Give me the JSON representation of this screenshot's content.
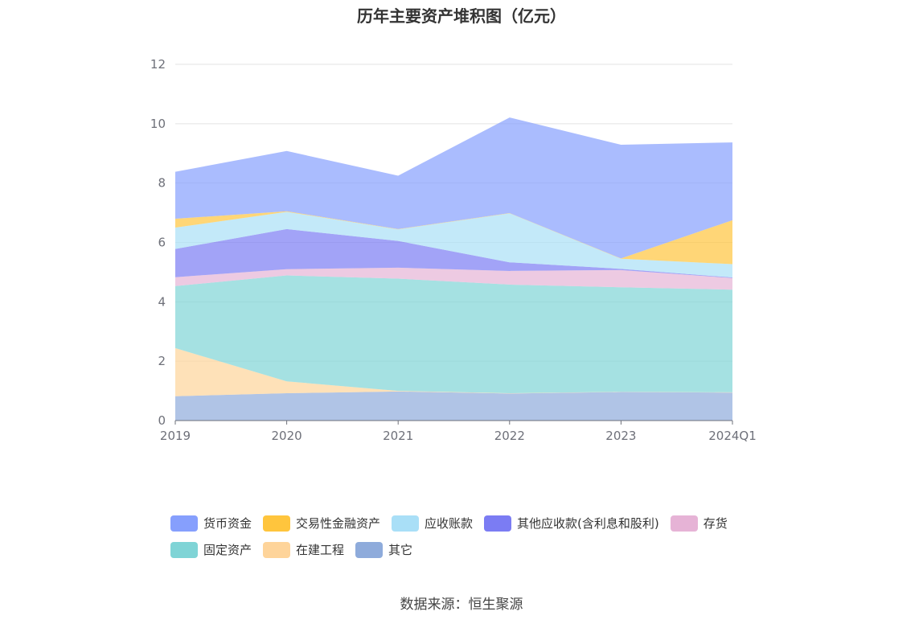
{
  "chart_data": {
    "type": "area",
    "stacked": true,
    "title": "历年主要资产堆积图（亿元）",
    "categories": [
      "2019",
      "2020",
      "2021",
      "2022",
      "2023",
      "2024Q1"
    ],
    "ylim": [
      0,
      12
    ],
    "yticks": [
      "0",
      "2",
      "4",
      "6",
      "8",
      "10",
      "12"
    ],
    "grid": true,
    "legend_position": "bottom",
    "series": [
      {
        "name": "其它",
        "color": "#8eabdb",
        "values": [
          0.82,
          0.92,
          0.98,
          0.91,
          0.96,
          0.94
        ]
      },
      {
        "name": "在建工程",
        "color": "#fed49a",
        "values": [
          1.62,
          0.4,
          0.02,
          0.01,
          0.01,
          0.01
        ]
      },
      {
        "name": "固定资产",
        "color": "#7fd4d6",
        "values": [
          2.09,
          3.57,
          3.78,
          3.66,
          3.52,
          3.46
        ]
      },
      {
        "name": "存货",
        "color": "#e6b3d6",
        "values": [
          0.3,
          0.21,
          0.37,
          0.46,
          0.58,
          0.39
        ]
      },
      {
        "name": "其他应收款(含利息和股利)",
        "color": "#7b7cf3",
        "values": [
          0.95,
          1.35,
          0.9,
          0.29,
          0.04,
          0.02
        ]
      },
      {
        "name": "应收账款",
        "color": "#a9dff7",
        "values": [
          0.72,
          0.58,
          0.39,
          1.65,
          0.34,
          0.45
        ]
      },
      {
        "name": "交易性金融资产",
        "color": "#ffc53d",
        "values": [
          0.3,
          0.02,
          0.01,
          0.01,
          0.01,
          1.48
        ]
      },
      {
        "name": "货币资金",
        "color": "#869ffd",
        "values": [
          1.58,
          2.03,
          1.8,
          3.22,
          3.83,
          2.62
        ]
      }
    ]
  },
  "legend": [
    {
      "name": "货币资金",
      "color": "#869ffd"
    },
    {
      "name": "交易性金融资产",
      "color": "#ffc53d"
    },
    {
      "name": "应收账款",
      "color": "#a9dff7"
    },
    {
      "name": "其他应收款(含利息和股利)",
      "color": "#7b7cf3"
    },
    {
      "name": "存货",
      "color": "#e6b3d6"
    },
    {
      "name": "固定资产",
      "color": "#7fd4d6"
    },
    {
      "name": "在建工程",
      "color": "#fed49a"
    },
    {
      "name": "其它",
      "color": "#8eabdb"
    }
  ],
  "source": "数据来源：恒生聚源"
}
